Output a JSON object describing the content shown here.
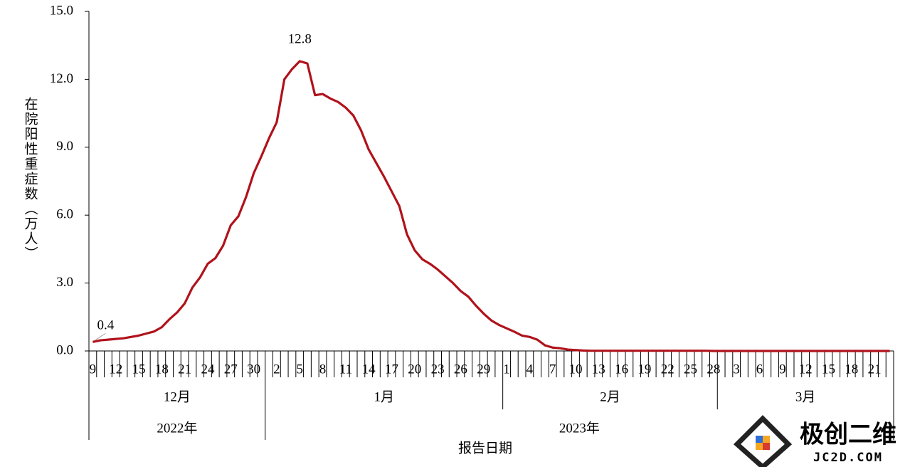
{
  "chart_data": {
    "type": "line",
    "y_label": "在院阳性重症数（万人）",
    "x_label": "报告日期",
    "x": [
      "2022-12-09",
      "2022-12-10",
      "2022-12-11",
      "2022-12-12",
      "2022-12-13",
      "2022-12-14",
      "2022-12-15",
      "2022-12-16",
      "2022-12-17",
      "2022-12-18",
      "2022-12-19",
      "2022-12-20",
      "2022-12-21",
      "2022-12-22",
      "2022-12-23",
      "2022-12-24",
      "2022-12-25",
      "2022-12-26",
      "2022-12-27",
      "2022-12-28",
      "2022-12-29",
      "2022-12-30",
      "2022-12-31",
      "2023-01-01",
      "2023-01-02",
      "2023-01-03",
      "2023-01-04",
      "2023-01-05",
      "2023-01-06",
      "2023-01-07",
      "2023-01-08",
      "2023-01-09",
      "2023-01-10",
      "2023-01-11",
      "2023-01-12",
      "2023-01-13",
      "2023-01-14",
      "2023-01-15",
      "2023-01-16",
      "2023-01-17",
      "2023-01-18",
      "2023-01-19",
      "2023-01-20",
      "2023-01-21",
      "2023-01-22",
      "2023-01-23",
      "2023-01-24",
      "2023-01-25",
      "2023-01-26",
      "2023-01-27",
      "2023-01-28",
      "2023-01-29",
      "2023-01-30",
      "2023-01-31",
      "2023-02-01",
      "2023-02-02",
      "2023-02-03",
      "2023-02-04",
      "2023-02-05",
      "2023-02-06",
      "2023-02-07",
      "2023-02-08",
      "2023-02-09",
      "2023-02-10",
      "2023-02-11",
      "2023-02-12",
      "2023-02-13",
      "2023-02-14",
      "2023-02-15",
      "2023-02-16",
      "2023-02-17",
      "2023-02-18",
      "2023-02-19",
      "2023-02-20",
      "2023-02-21",
      "2023-02-22",
      "2023-02-23",
      "2023-02-24",
      "2023-02-25",
      "2023-02-26",
      "2023-02-27",
      "2023-02-28",
      "2023-03-01",
      "2023-03-02",
      "2023-03-03",
      "2023-03-04",
      "2023-03-05",
      "2023-03-06",
      "2023-03-07",
      "2023-03-08",
      "2023-03-09",
      "2023-03-10",
      "2023-03-11",
      "2023-03-12",
      "2023-03-13",
      "2023-03-14",
      "2023-03-15",
      "2023-03-16",
      "2023-03-17",
      "2023-03-18",
      "2023-03-19",
      "2023-03-20",
      "2023-03-21",
      "2023-03-22",
      "2023-03-23"
    ],
    "categories": [
      "9",
      null,
      null,
      "12",
      null,
      null,
      "15",
      null,
      null,
      "18",
      null,
      null,
      "21",
      null,
      null,
      "24",
      null,
      null,
      "27",
      null,
      null,
      "30",
      null,
      null,
      "2",
      null,
      null,
      "5",
      null,
      null,
      "8",
      null,
      null,
      "11",
      null,
      null,
      "14",
      null,
      null,
      "17",
      null,
      null,
      "20",
      null,
      null,
      "23",
      null,
      null,
      "26",
      null,
      null,
      "29",
      null,
      null,
      "1",
      null,
      null,
      "4",
      null,
      null,
      "7",
      null,
      null,
      "10",
      null,
      null,
      "13",
      null,
      null,
      "16",
      null,
      null,
      "19",
      null,
      null,
      "22",
      null,
      null,
      "25",
      null,
      null,
      "28",
      null,
      null,
      "3",
      null,
      null,
      "6",
      null,
      null,
      "9",
      null,
      null,
      "12",
      null,
      null,
      "15",
      null,
      null,
      "18",
      null,
      null,
      "21",
      null,
      null
    ],
    "months": [
      "12月",
      "1月",
      "2月",
      "3月"
    ],
    "years": [
      "2022年",
      "2023年"
    ],
    "series": [
      {
        "color": "#b0121b",
        "values": [
          0.4,
          0.47,
          0.5,
          0.53,
          0.56,
          0.62,
          0.68,
          0.77,
          0.86,
          1.05,
          1.4,
          1.7,
          2.1,
          2.8,
          3.25,
          3.85,
          4.1,
          4.65,
          5.55,
          5.95,
          6.8,
          7.85,
          8.6,
          9.4,
          10.1,
          12.0,
          12.45,
          12.8,
          12.7,
          11.3,
          11.35,
          11.15,
          11.0,
          10.75,
          10.4,
          9.75,
          8.9,
          8.3,
          7.7,
          7.05,
          6.4,
          5.15,
          4.45,
          4.05,
          3.85,
          3.6,
          3.3,
          3.0,
          2.65,
          2.4,
          2.0,
          1.65,
          1.35,
          1.15,
          1.0,
          0.85,
          0.68,
          0.62,
          0.5,
          0.25,
          0.15,
          0.12,
          0.06,
          0.04,
          0.02,
          0.01,
          0.01,
          0.01,
          0.01,
          0.01,
          0.01,
          0.01,
          0.01,
          0.01,
          0.01,
          0.01,
          0.01,
          0.01,
          0.01,
          0.01,
          0.01,
          0,
          0,
          0,
          0,
          0,
          0,
          0,
          0,
          0,
          0,
          0,
          0,
          0,
          0,
          0,
          0,
          0,
          0,
          0,
          0,
          0,
          0,
          0,
          0
        ],
        "value_labels": [
          "0.4",
          null,
          null,
          null,
          null,
          null,
          null,
          null,
          null,
          null,
          null,
          null,
          null,
          null,
          null,
          null,
          null,
          null,
          null,
          null,
          null,
          null,
          null,
          null,
          null,
          null,
          null,
          "12.8",
          null,
          null,
          null,
          null,
          null,
          null,
          null,
          null,
          null,
          null,
          null,
          null,
          null,
          null,
          null,
          null,
          null,
          null,
          null,
          null,
          null,
          null,
          null,
          null,
          null,
          null,
          null,
          null,
          null,
          null,
          null,
          null,
          null,
          null,
          null,
          null,
          null,
          null,
          null,
          null,
          null,
          null,
          null,
          null,
          null,
          null,
          null,
          null,
          null,
          null,
          null,
          null,
          null,
          null,
          null,
          null,
          null,
          null,
          null,
          null,
          null,
          null,
          null,
          null,
          null,
          null,
          null,
          null,
          null,
          null,
          null,
          null,
          null,
          null,
          null,
          null,
          null
        ]
      }
    ],
    "ylim": [
      0,
      15
    ],
    "yticks": [
      {
        "value": 0,
        "label": "0.0"
      },
      {
        "value": 3,
        "label": "3.0"
      },
      {
        "value": 6,
        "label": "6.0"
      },
      {
        "value": 9,
        "label": "9.0"
      },
      {
        "value": 12,
        "label": "12.0"
      },
      {
        "value": 15,
        "label": "15.0"
      }
    ]
  },
  "watermark": {
    "name": "极创二维",
    "site": "JC2D.COM"
  }
}
